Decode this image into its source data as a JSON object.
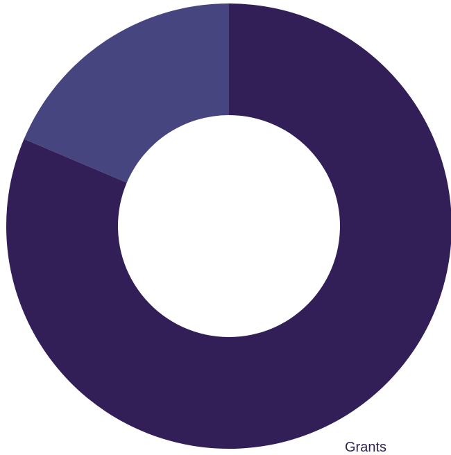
{
  "chart_data": {
    "type": "pie",
    "donut": true,
    "title": "",
    "slices": [
      {
        "label": "Grants",
        "value": 81.4,
        "color": "#331f57",
        "show_label": true
      },
      {
        "label": "",
        "value": 18.6,
        "color": "#47457f",
        "show_label": false
      }
    ],
    "legend": "none"
  }
}
